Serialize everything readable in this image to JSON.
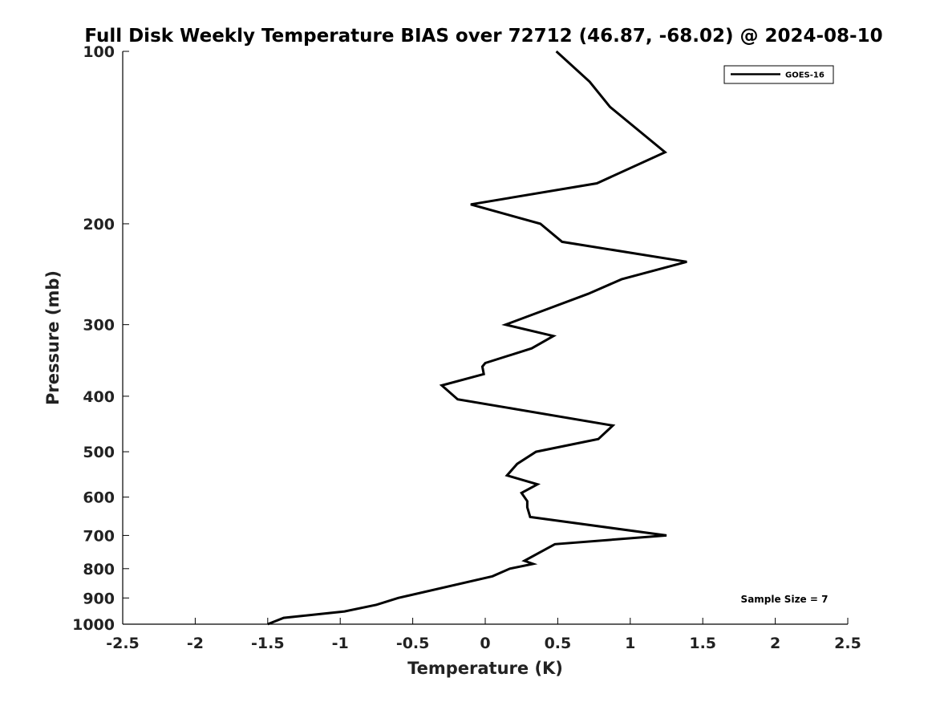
{
  "chart_data": {
    "type": "line",
    "title": "Full Disk Weekly Temperature BIAS over 72712 (46.87, -68.02) @ 2024-08-10",
    "xlabel": "Temperature (K)",
    "ylabel": "Pressure (mb)",
    "xlim": [
      -2.5,
      2.5
    ],
    "ylim": [
      1000,
      100
    ],
    "yscale": "log",
    "xticks": [
      -2.5,
      -2,
      -1.5,
      -1,
      -0.5,
      0,
      0.5,
      1,
      1.5,
      2,
      2.5
    ],
    "xtick_labels": [
      "-2.5",
      "-2",
      "-1.5",
      "-1",
      "-0.5",
      "0",
      "0.5",
      "1",
      "1.5",
      "2",
      "2.5"
    ],
    "yticks": [
      100,
      200,
      300,
      400,
      500,
      600,
      700,
      800,
      900,
      1000
    ],
    "ytick_labels": [
      "100",
      "200",
      "300",
      "400",
      "500",
      "600",
      "700",
      "800",
      "900",
      "1000"
    ],
    "grid": false,
    "legend_position": "top-right",
    "annotation": "Sample Size = 7",
    "series": [
      {
        "name": "GOES-16",
        "color": "#000000",
        "points": [
          {
            "x": 0.49,
            "p": 100
          },
          {
            "x": 0.72,
            "p": 113
          },
          {
            "x": 0.86,
            "p": 125
          },
          {
            "x": 1.24,
            "p": 150
          },
          {
            "x": 0.77,
            "p": 170
          },
          {
            "x": -0.1,
            "p": 185
          },
          {
            "x": 0.38,
            "p": 200
          },
          {
            "x": 0.53,
            "p": 215
          },
          {
            "x": 1.39,
            "p": 233
          },
          {
            "x": 0.94,
            "p": 250
          },
          {
            "x": 0.71,
            "p": 265
          },
          {
            "x": 0.14,
            "p": 300
          },
          {
            "x": 0.47,
            "p": 314
          },
          {
            "x": 0.32,
            "p": 330
          },
          {
            "x": 0.0,
            "p": 350
          },
          {
            "x": -0.02,
            "p": 355
          },
          {
            "x": -0.01,
            "p": 366
          },
          {
            "x": -0.3,
            "p": 383
          },
          {
            "x": -0.19,
            "p": 405
          },
          {
            "x": 0.88,
            "p": 450
          },
          {
            "x": 0.78,
            "p": 475
          },
          {
            "x": 0.35,
            "p": 500
          },
          {
            "x": 0.22,
            "p": 525
          },
          {
            "x": 0.15,
            "p": 550
          },
          {
            "x": 0.36,
            "p": 570
          },
          {
            "x": 0.25,
            "p": 590
          },
          {
            "x": 0.29,
            "p": 610
          },
          {
            "x": 0.29,
            "p": 625
          },
          {
            "x": 0.31,
            "p": 650
          },
          {
            "x": 1.25,
            "p": 700
          },
          {
            "x": 0.48,
            "p": 725
          },
          {
            "x": 0.27,
            "p": 775
          },
          {
            "x": 0.33,
            "p": 785
          },
          {
            "x": 0.17,
            "p": 800
          },
          {
            "x": 0.05,
            "p": 825
          },
          {
            "x": -0.6,
            "p": 900
          },
          {
            "x": -0.75,
            "p": 925
          },
          {
            "x": -0.97,
            "p": 950
          },
          {
            "x": -1.39,
            "p": 975
          },
          {
            "x": -1.5,
            "p": 1000
          }
        ]
      }
    ]
  }
}
